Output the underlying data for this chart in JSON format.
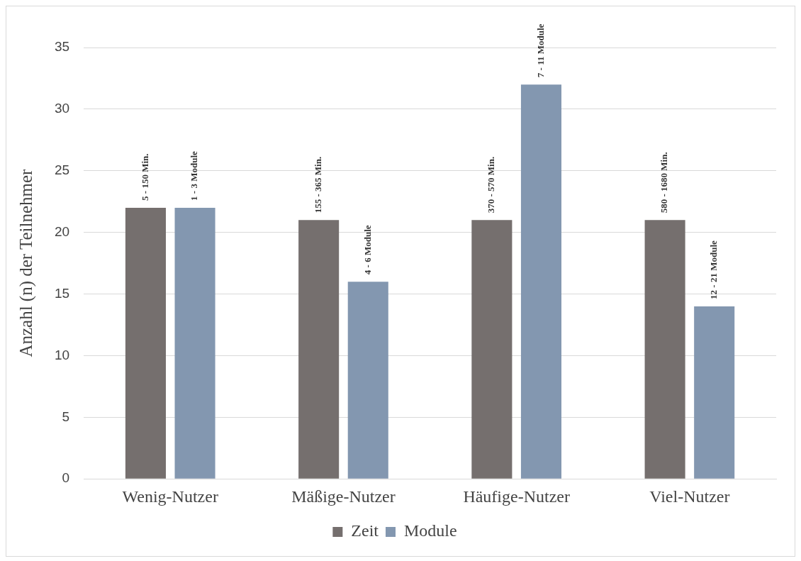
{
  "chart_data": {
    "type": "bar",
    "ylabel": "Anzahl (n) der Teilnehmer",
    "categories": [
      "Wenig-Nutzer",
      "Mäßige-Nutzer",
      "Häufige-Nutzer",
      "Viel-Nutzer"
    ],
    "series": [
      {
        "name": "Zeit",
        "color": "#756f6e",
        "values": [
          22,
          21,
          21,
          21
        ]
      },
      {
        "name": "Module",
        "color": "#8397b0",
        "values": [
          22,
          16,
          32,
          14
        ]
      }
    ],
    "annotations": [
      "5 - 150 Min.",
      "155 - 365 Min.",
      "370 - 570 Min.",
      "580 - 1680 Min.",
      "1 - 3 Module",
      "4 - 6 Module",
      "7 - 11 Module",
      "12 - 21 Module"
    ],
    "ylim": [
      0,
      35
    ],
    "yticks": [
      0,
      5,
      10,
      15,
      20,
      25,
      30,
      35
    ],
    "grid": "y",
    "legend": "bottom"
  }
}
